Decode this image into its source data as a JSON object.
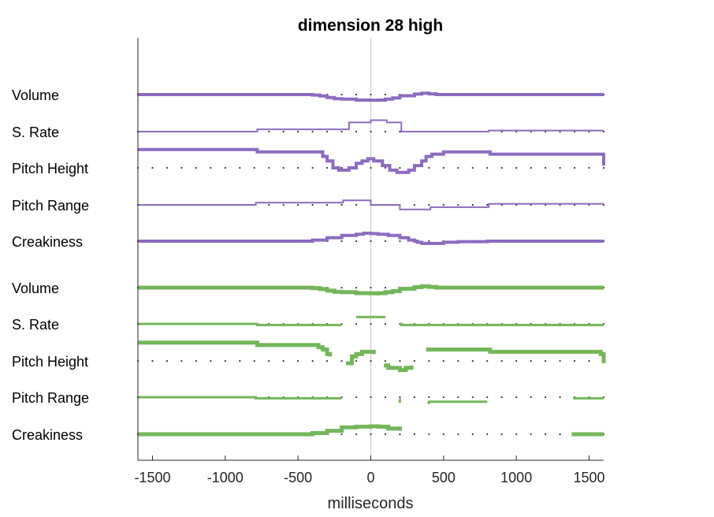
{
  "chart_data": {
    "type": "line",
    "title": "dimension 28 high",
    "xlabel": "milliseconds",
    "xlim": [
      -1600,
      1600
    ],
    "xticks": [
      -1500,
      -1000,
      -500,
      0,
      500,
      1000,
      1500
    ],
    "xtick_labels": [
      "-1500",
      "-1000",
      "-500",
      "0",
      "500",
      "1000",
      "1500"
    ],
    "zero_line": true,
    "reference_dots_spacing_ms": 100,
    "colors": {
      "purple": "#8c6bbf",
      "green": "#74b65a",
      "dots": "#333333",
      "axis": "#262626",
      "zero": "#c8c8c8"
    },
    "groups": [
      {
        "color": "purple",
        "rows": [
          {
            "label": "Volume",
            "width": 4,
            "points": [
              [
                -1600,
                0
              ],
              [
                -800,
                0
              ],
              [
                -400,
                0.2
              ],
              [
                -350,
                0.6
              ],
              [
                -300,
                1.3
              ],
              [
                -250,
                1.8
              ],
              [
                -200,
                2
              ],
              [
                -100,
                2.4
              ],
              [
                0,
                2.5
              ],
              [
                50,
                2.4
              ],
              [
                100,
                2
              ],
              [
                150,
                1.5
              ],
              [
                200,
                0.5
              ],
              [
                300,
                -0.2
              ],
              [
                350,
                -0.6
              ],
              [
                400,
                -0.3
              ],
              [
                450,
                0
              ],
              [
                1600,
                0
              ]
            ]
          },
          {
            "label": "S. Rate",
            "width": 2,
            "points": [
              [
                -1600,
                0
              ],
              [
                -800,
                0
              ],
              [
                -780,
                -1
              ],
              [
                -200,
                -1
              ],
              [
                -150,
                -4
              ],
              [
                -100,
                -4
              ],
              [
                -50,
                -4
              ],
              [
                0,
                -5
              ],
              [
                50,
                -5
              ],
              [
                100,
                -5
              ],
              [
                110,
                -4
              ],
              [
                200,
                -4
              ],
              [
                210,
                0
              ],
              [
                400,
                0
              ],
              [
                800,
                0
              ],
              [
                810,
                -0.5
              ],
              [
                1600,
                -0.5
              ]
            ]
          },
          {
            "label": "Pitch Height",
            "width": 4,
            "points": [
              [
                -1600,
                -8
              ],
              [
                -1000,
                -8
              ],
              [
                -800,
                -8
              ],
              [
                -780,
                -7
              ],
              [
                -400,
                -7
              ],
              [
                -330,
                -5
              ],
              [
                -300,
                -3
              ],
              [
                -260,
                0
              ],
              [
                -220,
                1
              ],
              [
                -180,
                1
              ],
              [
                -150,
                0
              ],
              [
                -100,
                -2
              ],
              [
                -60,
                -3
              ],
              [
                -20,
                -4
              ],
              [
                20,
                -3
              ],
              [
                80,
                -1
              ],
              [
                130,
                1
              ],
              [
                180,
                2
              ],
              [
                230,
                2
              ],
              [
                260,
                1
              ],
              [
                300,
                -1
              ],
              [
                350,
                -3
              ],
              [
                380,
                -5
              ],
              [
                420,
                -6
              ],
              [
                500,
                -7
              ],
              [
                600,
                -7
              ],
              [
                800,
                -7
              ],
              [
                820,
                -6
              ],
              [
                1400,
                -6
              ],
              [
                1580,
                -6
              ],
              [
                1600,
                -1
              ]
            ]
          },
          {
            "label": "Pitch Range",
            "width": 2,
            "points": [
              [
                -1600,
                0
              ],
              [
                -800,
                0
              ],
              [
                -790,
                -1
              ],
              [
                -200,
                -1
              ],
              [
                -190,
                -2
              ],
              [
                -20,
                -2
              ],
              [
                0,
                0
              ],
              [
                180,
                0
              ],
              [
                200,
                2
              ],
              [
                300,
                2
              ],
              [
                400,
                2
              ],
              [
                410,
                1
              ],
              [
                800,
                1
              ],
              [
                810,
                -0.5
              ],
              [
                1600,
                -0.5
              ]
            ]
          },
          {
            "label": "Creakiness",
            "width": 4,
            "points": [
              [
                -1600,
                0
              ],
              [
                -800,
                0
              ],
              [
                -400,
                -0.5
              ],
              [
                -300,
                -1.5
              ],
              [
                -200,
                -2.5
              ],
              [
                -100,
                -3
              ],
              [
                -50,
                -3.5
              ],
              [
                0,
                -3.3
              ],
              [
                50,
                -3
              ],
              [
                120,
                -2.5
              ],
              [
                200,
                -1.5
              ],
              [
                260,
                -0.5
              ],
              [
                300,
                0
              ],
              [
                320,
                0.5
              ],
              [
                350,
                1
              ],
              [
                400,
                1
              ],
              [
                500,
                0.5
              ],
              [
                600,
                0.2
              ],
              [
                800,
                0
              ],
              [
                1600,
                0
              ]
            ]
          }
        ]
      },
      {
        "color": "green",
        "rows": [
          {
            "label": "Volume",
            "width": 5,
            "points": [
              [
                -1600,
                0
              ],
              [
                -800,
                0
              ],
              [
                -400,
                0.2
              ],
              [
                -350,
                0.6
              ],
              [
                -300,
                1.3
              ],
              [
                -250,
                1.8
              ],
              [
                -200,
                2
              ],
              [
                -100,
                2.4
              ],
              [
                0,
                2.5
              ],
              [
                50,
                2.4
              ],
              [
                100,
                2
              ],
              [
                150,
                1.5
              ],
              [
                200,
                0.5
              ],
              [
                300,
                -0.2
              ],
              [
                350,
                -0.6
              ],
              [
                400,
                -0.3
              ],
              [
                450,
                0
              ],
              [
                1600,
                0
              ]
            ]
          },
          {
            "label": "S. Rate",
            "width": 3,
            "points": [
              [
                -1600,
                0
              ],
              [
                -800,
                0
              ],
              [
                -780,
                0.5
              ],
              [
                -200,
                0.5
              ],
              [
                -190,
                null
              ],
              [
                -100,
                -3
              ],
              [
                100,
                -3
              ],
              [
                110,
                null
              ],
              [
                200,
                0
              ],
              [
                210,
                0.5
              ],
              [
                400,
                0.5
              ],
              [
                800,
                0.5
              ],
              [
                810,
                0.5
              ],
              [
                1600,
                0.5
              ]
            ]
          },
          {
            "label": "Pitch Height",
            "width": 5,
            "points": [
              [
                -1600,
                -8
              ],
              [
                -1000,
                -8
              ],
              [
                -800,
                -8
              ],
              [
                -780,
                -7
              ],
              [
                -400,
                -7
              ],
              [
                -360,
                -6
              ],
              [
                -330,
                -5
              ],
              [
                -300,
                -3
              ],
              [
                -280,
                -2
              ],
              [
                -260,
                null
              ],
              [
                -170,
                1
              ],
              [
                -130,
                -2
              ],
              [
                -100,
                -3
              ],
              [
                -60,
                -4
              ],
              [
                -20,
                -4
              ],
              [
                20,
                -3
              ],
              [
                40,
                null
              ],
              [
                90,
                2
              ],
              [
                120,
                3
              ],
              [
                150,
                3
              ],
              [
                200,
                4
              ],
              [
                240,
                3
              ],
              [
                280,
                2
              ],
              [
                300,
                null
              ],
              [
                380,
                -5
              ],
              [
                420,
                -5
              ],
              [
                800,
                -5
              ],
              [
                820,
                -4
              ],
              [
                1550,
                -4
              ],
              [
                1580,
                -3
              ],
              [
                1600,
                1
              ]
            ]
          },
          {
            "label": "Pitch Range",
            "width": 3,
            "points": [
              [
                -1600,
                0
              ],
              [
                -800,
                0
              ],
              [
                -790,
                0.5
              ],
              [
                -200,
                0.5
              ],
              [
                -190,
                null
              ],
              [
                195,
                1
              ],
              [
                200,
                2.5
              ],
              [
                205,
                null
              ],
              [
                390,
                2.5
              ],
              [
                400,
                2
              ],
              [
                800,
                2
              ],
              [
                810,
                null
              ],
              [
                1390,
                0.5
              ],
              [
                1600,
                0.5
              ]
            ]
          },
          {
            "label": "Creakiness",
            "width": 5,
            "points": [
              [
                -1600,
                0
              ],
              [
                -800,
                0
              ],
              [
                -400,
                -0.5
              ],
              [
                -300,
                -1.5
              ],
              [
                -200,
                -3
              ],
              [
                -100,
                -3.3
              ],
              [
                0,
                -3.5
              ],
              [
                50,
                -3.3
              ],
              [
                120,
                -2.5
              ],
              [
                200,
                -1.5
              ],
              [
                210,
                null
              ],
              [
                1380,
                0
              ],
              [
                1600,
                0
              ]
            ]
          }
        ]
      }
    ]
  }
}
